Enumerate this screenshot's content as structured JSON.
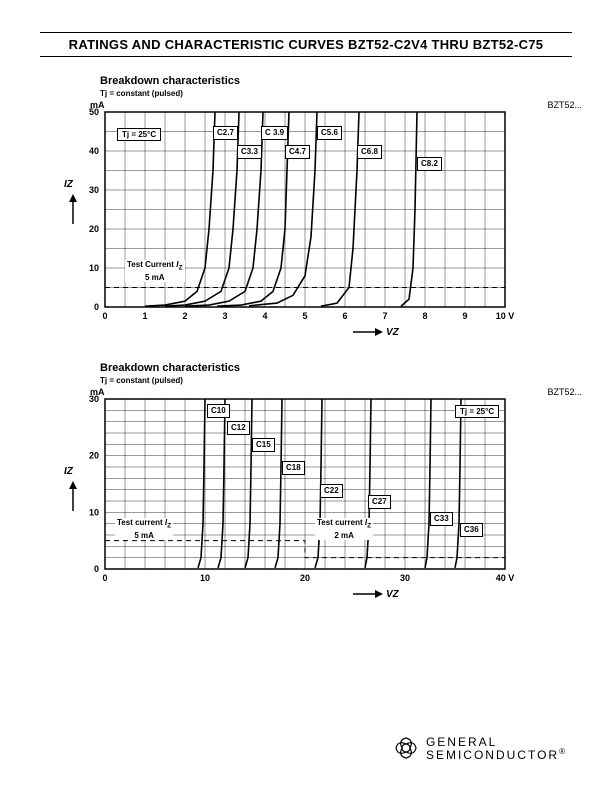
{
  "header": {
    "title": "RATINGS AND CHARACTERISTIC CURVES BZT52-C2V4 THRU BZT52-C75"
  },
  "chart1": {
    "title": "Breakdown characteristics",
    "subtitle": "Tj = constant (pulsed)",
    "y_unit": "mA",
    "y_label": "IZ",
    "x_label": "VZ",
    "x_unit": "10 V",
    "corner": "BZT52...",
    "temp_label": "Tj = 25°C",
    "xlim": [
      0,
      10
    ],
    "ylim": [
      0,
      50
    ],
    "xticks": [
      0,
      1,
      2,
      3,
      4,
      5,
      6,
      7,
      8,
      9
    ],
    "yticks": [
      0,
      10,
      20,
      30,
      40,
      50
    ],
    "minor_x": 0.5,
    "minor_y": 5,
    "test_current_label": "Test Current IZ\n5 mA",
    "test_current_y": 5,
    "grid_color": "#000000",
    "curves": [
      {
        "label": "C2.7",
        "label_x": 2.7,
        "label_y": 45,
        "pts": [
          [
            1.0,
            0.2
          ],
          [
            1.5,
            0.5
          ],
          [
            2.0,
            1.5
          ],
          [
            2.3,
            4
          ],
          [
            2.5,
            10
          ],
          [
            2.6,
            20
          ],
          [
            2.7,
            35
          ],
          [
            2.75,
            50
          ]
        ]
      },
      {
        "label": "C3.3",
        "label_x": 3.3,
        "label_y": 40,
        "pts": [
          [
            1.5,
            0.2
          ],
          [
            2.0,
            0.5
          ],
          [
            2.5,
            1.5
          ],
          [
            2.9,
            4
          ],
          [
            3.1,
            10
          ],
          [
            3.2,
            20
          ],
          [
            3.3,
            35
          ],
          [
            3.35,
            50
          ]
        ]
      },
      {
        "label": "C 3.9",
        "label_x": 3.9,
        "label_y": 45,
        "pts": [
          [
            2.0,
            0.2
          ],
          [
            2.6,
            0.5
          ],
          [
            3.1,
            1.5
          ],
          [
            3.5,
            4
          ],
          [
            3.7,
            10
          ],
          [
            3.8,
            20
          ],
          [
            3.9,
            35
          ],
          [
            3.95,
            50
          ]
        ]
      },
      {
        "label": "C4.7",
        "label_x": 4.5,
        "label_y": 40,
        "pts": [
          [
            2.8,
            0.2
          ],
          [
            3.4,
            0.5
          ],
          [
            3.9,
            1.5
          ],
          [
            4.2,
            4
          ],
          [
            4.4,
            10
          ],
          [
            4.5,
            20
          ],
          [
            4.55,
            35
          ],
          [
            4.6,
            50
          ]
        ]
      },
      {
        "label": "C5.6",
        "label_x": 5.3,
        "label_y": 45,
        "pts": [
          [
            3.6,
            0.3
          ],
          [
            4.3,
            1
          ],
          [
            4.7,
            3
          ],
          [
            5.0,
            8
          ],
          [
            5.15,
            18
          ],
          [
            5.25,
            35
          ],
          [
            5.3,
            50
          ]
        ]
      },
      {
        "label": "C6.8",
        "label_x": 6.3,
        "label_y": 40,
        "pts": [
          [
            5.4,
            0.2
          ],
          [
            5.8,
            1
          ],
          [
            6.1,
            5
          ],
          [
            6.2,
            15
          ],
          [
            6.3,
            35
          ],
          [
            6.35,
            50
          ]
        ]
      },
      {
        "label": "C8.2",
        "label_x": 7.8,
        "label_y": 37,
        "pts": [
          [
            7.4,
            0.2
          ],
          [
            7.6,
            2
          ],
          [
            7.7,
            10
          ],
          [
            7.75,
            25
          ],
          [
            7.8,
            50
          ]
        ]
      }
    ]
  },
  "chart2": {
    "title": "Breakdown characteristics",
    "subtitle": "Tj = constant (pulsed)",
    "y_unit": "mA",
    "y_label": "IZ",
    "x_label": "VZ",
    "x_unit": "40 V",
    "corner": "BZT52...",
    "temp_label": "Tj = 25°C",
    "xlim": [
      0,
      40
    ],
    "ylim": [
      0,
      30
    ],
    "xticks": [
      0,
      10,
      20,
      30
    ],
    "yticks": [
      0,
      10,
      20,
      30
    ],
    "minor_x": 2,
    "minor_y": 2,
    "test_current_label_a": "Test current IZ\n5 mA",
    "test_current_label_b": "Test current IZ\n2 mA",
    "test_y_a": 5,
    "test_y_b": 2,
    "split_x": 20,
    "grid_color": "#000000",
    "curves": [
      {
        "label": "C10",
        "label_x": 10.2,
        "label_y": 28,
        "pts": [
          [
            9.3,
            0.2
          ],
          [
            9.6,
            2
          ],
          [
            9.8,
            8
          ],
          [
            9.9,
            18
          ],
          [
            10.0,
            30
          ]
        ]
      },
      {
        "label": "C12",
        "label_x": 12.2,
        "label_y": 25,
        "pts": [
          [
            11.3,
            0.2
          ],
          [
            11.6,
            2
          ],
          [
            11.8,
            8
          ],
          [
            11.9,
            18
          ],
          [
            12.0,
            30
          ]
        ]
      },
      {
        "label": "C15",
        "label_x": 14.7,
        "label_y": 22,
        "pts": [
          [
            14.0,
            0.2
          ],
          [
            14.3,
            2
          ],
          [
            14.5,
            8
          ],
          [
            14.6,
            18
          ],
          [
            14.7,
            30
          ]
        ]
      },
      {
        "label": "C18",
        "label_x": 17.7,
        "label_y": 18,
        "pts": [
          [
            17.0,
            0.2
          ],
          [
            17.3,
            2
          ],
          [
            17.5,
            8
          ],
          [
            17.6,
            18
          ],
          [
            17.7,
            30
          ]
        ]
      },
      {
        "label": "C22",
        "label_x": 21.5,
        "label_y": 14,
        "pts": [
          [
            21.0,
            0.2
          ],
          [
            21.3,
            2
          ],
          [
            21.5,
            8
          ],
          [
            21.6,
            18
          ],
          [
            21.7,
            30
          ]
        ]
      },
      {
        "label": "C27",
        "label_x": 26.3,
        "label_y": 12,
        "pts": [
          [
            26.0,
            0.2
          ],
          [
            26.2,
            2
          ],
          [
            26.4,
            8
          ],
          [
            26.5,
            18
          ],
          [
            26.6,
            30
          ]
        ]
      },
      {
        "label": "C33",
        "label_x": 32.5,
        "label_y": 9,
        "pts": [
          [
            32.0,
            0.2
          ],
          [
            32.2,
            2
          ],
          [
            32.4,
            8
          ],
          [
            32.5,
            18
          ],
          [
            32.6,
            30
          ]
        ]
      },
      {
        "label": "C36",
        "label_x": 35.5,
        "label_y": 7,
        "pts": [
          [
            35.0,
            0.2
          ],
          [
            35.2,
            2
          ],
          [
            35.4,
            8
          ],
          [
            35.5,
            18
          ],
          [
            35.6,
            30
          ]
        ]
      }
    ]
  },
  "footer": {
    "brand_top": "GENERAL",
    "brand_bot": "SEMICONDUCTOR",
    "reg": "®"
  }
}
